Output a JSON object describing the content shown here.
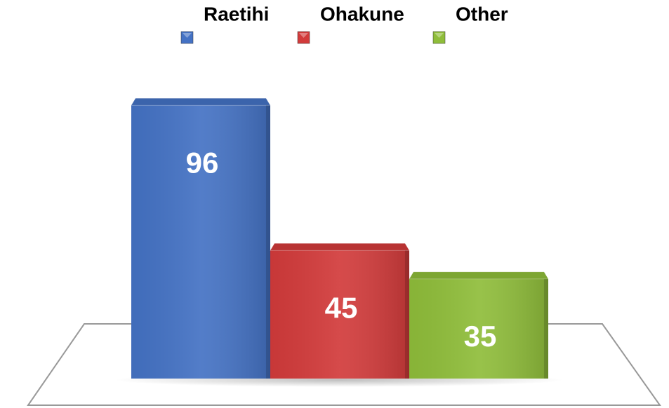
{
  "chart_data": {
    "type": "bar",
    "series": [
      {
        "name": "Raetihi",
        "color": "#4472c4",
        "values": [
          96
        ]
      },
      {
        "name": "Ohakune",
        "color": "#d23b3b",
        "values": [
          45
        ]
      },
      {
        "name": "Other",
        "color": "#8fbd3a",
        "values": [
          35
        ]
      }
    ],
    "legend": "top"
  }
}
